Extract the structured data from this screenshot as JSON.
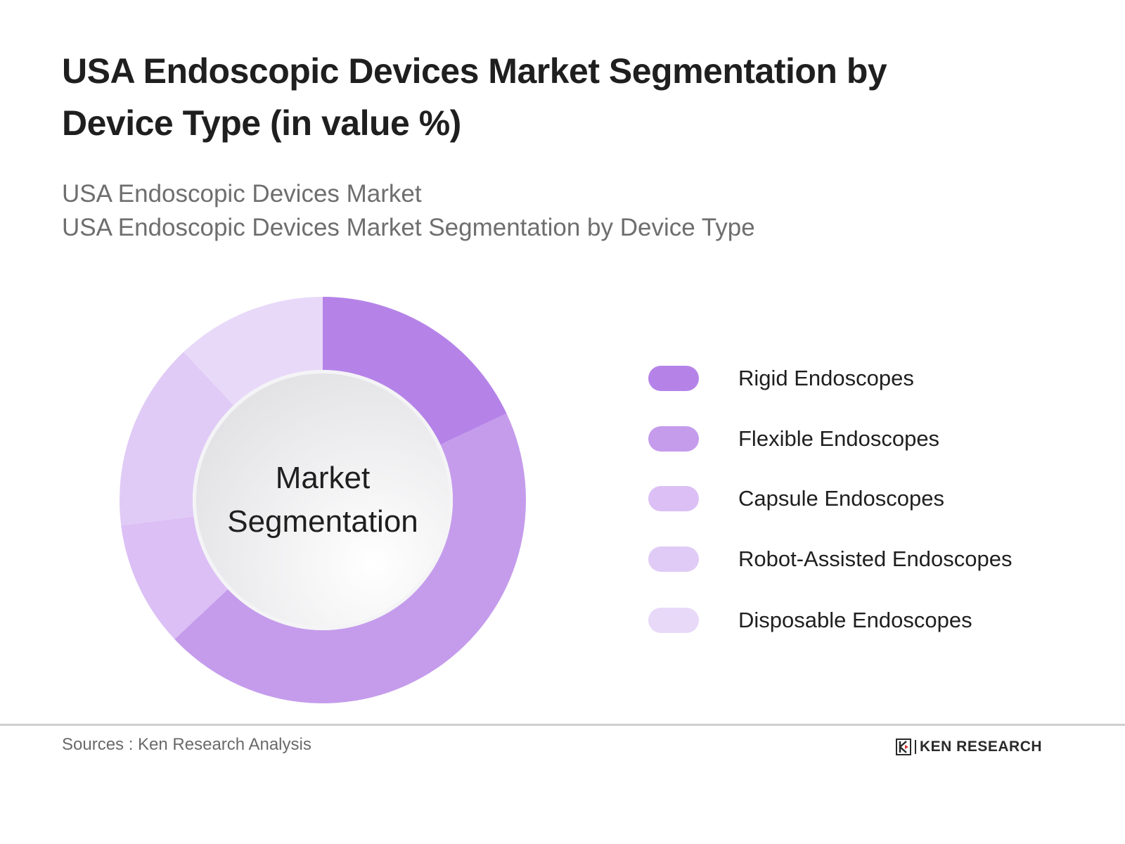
{
  "header": {
    "title": "USA Endoscopic Devices Market Segmentation by Device Type (in value %)",
    "subtitle_lines": [
      "USA Endoscopic Devices Market",
      "USA Endoscopic Devices Market Segmentation by Device Type"
    ]
  },
  "donut": {
    "center_label_line1": "Market",
    "center_label_line2": "Segmentation"
  },
  "legend": {
    "items": [
      {
        "label": "Rigid Endoscopes",
        "color": "#b583e8"
      },
      {
        "label": "Flexible Endoscopes",
        "color": "#c59cec"
      },
      {
        "label": "Capsule Endoscopes",
        "color": "#dbbff5"
      },
      {
        "label": "Robot-Assisted Endoscopes",
        "color": "#e0cbf6"
      },
      {
        "label": "Disposable Endoscopes",
        "color": "#e8d9f9"
      }
    ]
  },
  "footer": {
    "source": "Sources : Ken Research Analysis",
    "logo_text": "KEN RESEARCH"
  },
  "chart_data": {
    "type": "pie",
    "subtype": "donut",
    "title": "USA Endoscopic Devices Market Segmentation by Device Type (in value %)",
    "subtitle": "USA Endoscopic Devices Market / USA Endoscopic Devices Market Segmentation by Device Type",
    "center_label": "Market Segmentation",
    "categories": [
      "Rigid Endoscopes",
      "Flexible Endoscopes",
      "Capsule Endoscopes",
      "Robot-Assisted Endoscopes",
      "Disposable Endoscopes"
    ],
    "values": [
      18,
      45,
      10,
      15,
      12
    ],
    "unit": "%",
    "colors": [
      "#b583e8",
      "#c59cec",
      "#dbbff5",
      "#e0cbf6",
      "#e8d9f9"
    ],
    "start_angle_deg": 0,
    "direction": "clockwise",
    "data_labels": false,
    "legend_position": "right",
    "source": "Sources : Ken Research Analysis"
  }
}
